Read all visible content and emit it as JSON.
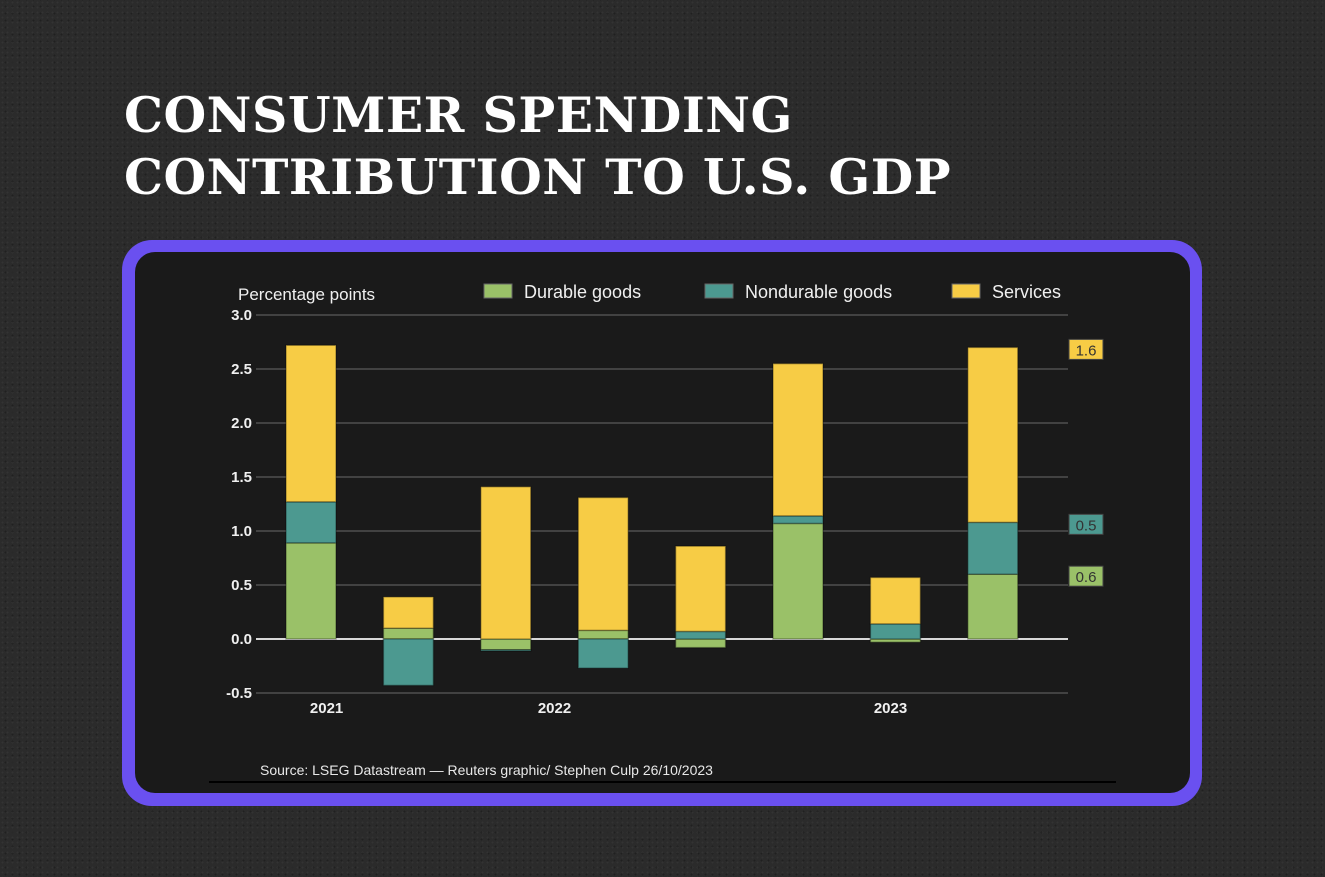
{
  "title": {
    "line1": "CONSUMER SPENDING",
    "line2": "CONTRIBUTION TO U.S. GDP"
  },
  "frame_color": "#6a50f0",
  "chart_data": {
    "type": "bar",
    "stacked": true,
    "ylabel": "Percentage points",
    "ylim": [
      -0.5,
      3.0
    ],
    "yticks": [
      "-0.5",
      "0.0",
      "0.5",
      "1.0",
      "1.5",
      "2.0",
      "2.5",
      "3.0"
    ],
    "grid": true,
    "legend": "top",
    "x_tick_labels": [
      {
        "label": "2021",
        "at": 0.16
      },
      {
        "label": "2022",
        "at": 2.5
      },
      {
        "label": "2023",
        "at": 5.95
      }
    ],
    "series": [
      {
        "name": "Durable goods",
        "color": "#9ac168",
        "values": [
          0.89,
          0.1,
          -0.1,
          0.08,
          -0.08,
          1.07,
          -0.03,
          0.6
        ]
      },
      {
        "name": "Nondurable goods",
        "color": "#4c9990",
        "values": [
          0.38,
          -0.43,
          -0.01,
          -0.27,
          0.07,
          0.07,
          0.14,
          0.48
        ]
      },
      {
        "name": "Services",
        "color": "#f7cc45",
        "values": [
          1.45,
          0.29,
          1.41,
          1.23,
          0.79,
          1.41,
          0.43,
          1.62
        ]
      }
    ],
    "end_labels": [
      {
        "series": 2,
        "text": "1.6"
      },
      {
        "series": 1,
        "text": "0.5"
      },
      {
        "series": 0,
        "text": "0.6"
      }
    ],
    "source": "Source: LSEG Datastream — Reuters graphic/ Stephen Culp  26/10/2023"
  }
}
